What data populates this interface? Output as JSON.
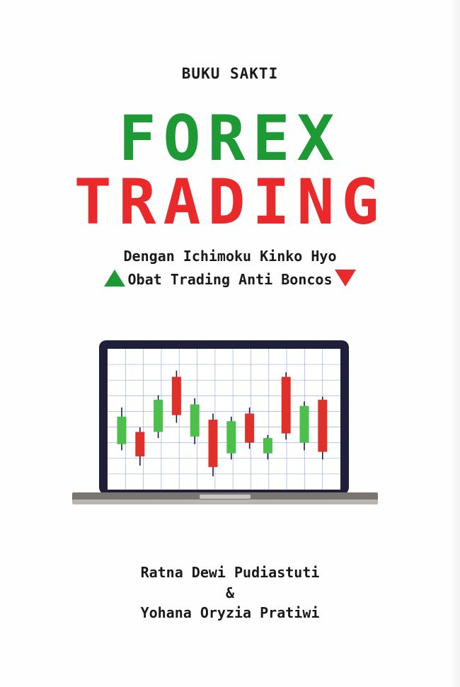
{
  "cover": {
    "series": "BUKU SAKTI",
    "title_line1": "FOREX",
    "title_line2": "TRADING",
    "subtitle_line1": "Dengan Ichimoku Kinko Hyo",
    "subtitle_line2": "Obat Trading Anti Boncos",
    "author1": "Ratna Dewi Pudiastuti",
    "separator": "&",
    "author2": "Yohana Oryzia Pratiwi"
  },
  "colors": {
    "green": "#1e9a35",
    "red": "#ea2a2a",
    "laptop_frame": "#1f1f3a",
    "grid": "#a9b8e8"
  },
  "chart_data": {
    "type": "candlestick",
    "candles": [
      {
        "color": "green",
        "open": 26,
        "close": 44,
        "high": 50,
        "low": 22
      },
      {
        "color": "red",
        "open": 34,
        "close": 18,
        "high": 37,
        "low": 12
      },
      {
        "color": "green",
        "open": 34,
        "close": 55,
        "high": 58,
        "low": 30
      },
      {
        "color": "red",
        "open": 70,
        "close": 45,
        "high": 74,
        "low": 40
      },
      {
        "color": "green",
        "open": 31,
        "close": 52,
        "high": 56,
        "low": 26
      },
      {
        "color": "red",
        "open": 42,
        "close": 11,
        "high": 46,
        "low": 5
      },
      {
        "color": "green",
        "open": 20,
        "close": 41,
        "high": 44,
        "low": 16
      },
      {
        "color": "red",
        "open": 46,
        "close": 27,
        "high": 50,
        "low": 23
      },
      {
        "color": "green",
        "open": 20,
        "close": 30,
        "high": 32,
        "low": 16
      },
      {
        "color": "red",
        "open": 70,
        "close": 33,
        "high": 73,
        "low": 29
      },
      {
        "color": "green",
        "open": 27,
        "close": 51,
        "high": 54,
        "low": 22
      },
      {
        "color": "red",
        "open": 55,
        "close": 21,
        "high": 57,
        "low": 16
      }
    ]
  }
}
